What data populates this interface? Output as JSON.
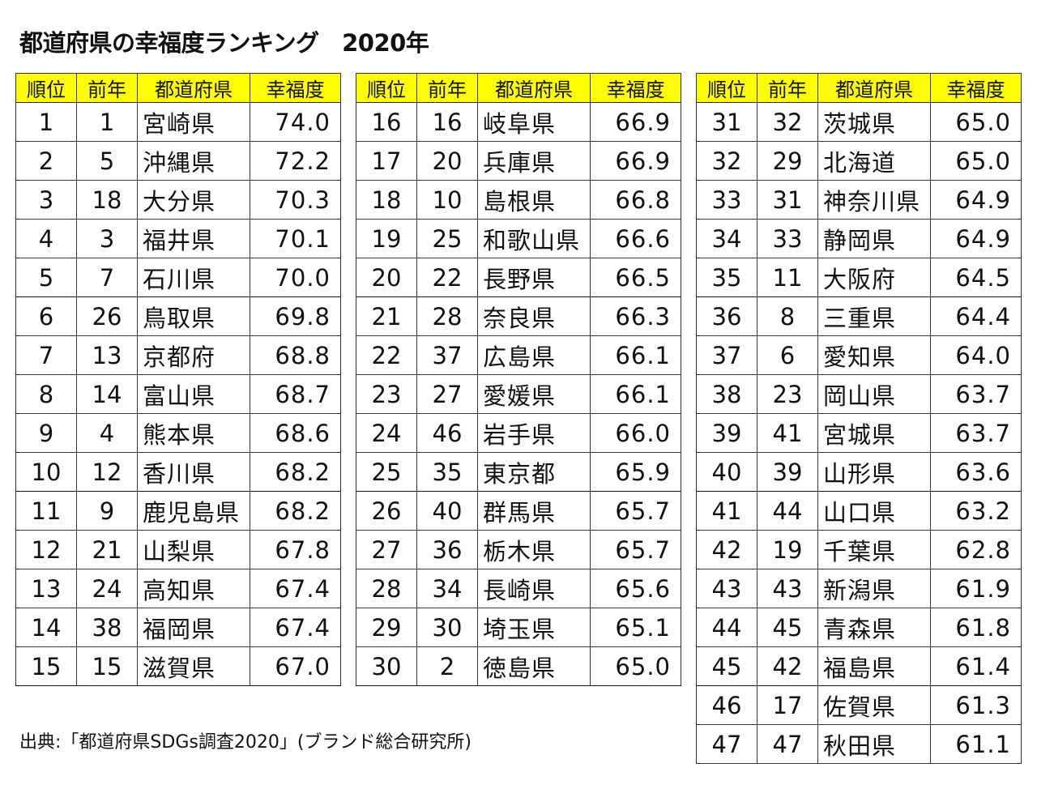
{
  "title": "都道府県の幸福度ランキング　2020年",
  "headers": {
    "rank": "順位",
    "prev": "前年",
    "pref": "都道府県",
    "score": "幸福度"
  },
  "tables": [
    {
      "rows": [
        {
          "rank": "1",
          "prev": "1",
          "pref": "宮崎県",
          "score": "74.0"
        },
        {
          "rank": "2",
          "prev": "5",
          "pref": "沖縄県",
          "score": "72.2"
        },
        {
          "rank": "3",
          "prev": "18",
          "pref": "大分県",
          "score": "70.3"
        },
        {
          "rank": "4",
          "prev": "3",
          "pref": "福井県",
          "score": "70.1"
        },
        {
          "rank": "5",
          "prev": "7",
          "pref": "石川県",
          "score": "70.0"
        },
        {
          "rank": "6",
          "prev": "26",
          "pref": "鳥取県",
          "score": "69.8"
        },
        {
          "rank": "7",
          "prev": "13",
          "pref": "京都府",
          "score": "68.8"
        },
        {
          "rank": "8",
          "prev": "14",
          "pref": "富山県",
          "score": "68.7"
        },
        {
          "rank": "9",
          "prev": "4",
          "pref": "熊本県",
          "score": "68.6"
        },
        {
          "rank": "10",
          "prev": "12",
          "pref": "香川県",
          "score": "68.2"
        },
        {
          "rank": "11",
          "prev": "9",
          "pref": "鹿児島県",
          "score": "68.2"
        },
        {
          "rank": "12",
          "prev": "21",
          "pref": "山梨県",
          "score": "67.8"
        },
        {
          "rank": "13",
          "prev": "24",
          "pref": "高知県",
          "score": "67.4"
        },
        {
          "rank": "14",
          "prev": "38",
          "pref": "福岡県",
          "score": "67.4"
        },
        {
          "rank": "15",
          "prev": "15",
          "pref": "滋賀県",
          "score": "67.0"
        }
      ]
    },
    {
      "rows": [
        {
          "rank": "16",
          "prev": "16",
          "pref": "岐阜県",
          "score": "66.9"
        },
        {
          "rank": "17",
          "prev": "20",
          "pref": "兵庫県",
          "score": "66.9"
        },
        {
          "rank": "18",
          "prev": "10",
          "pref": "島根県",
          "score": "66.8"
        },
        {
          "rank": "19",
          "prev": "25",
          "pref": "和歌山県",
          "score": "66.6"
        },
        {
          "rank": "20",
          "prev": "22",
          "pref": "長野県",
          "score": "66.5"
        },
        {
          "rank": "21",
          "prev": "28",
          "pref": "奈良県",
          "score": "66.3"
        },
        {
          "rank": "22",
          "prev": "37",
          "pref": "広島県",
          "score": "66.1"
        },
        {
          "rank": "23",
          "prev": "27",
          "pref": "愛媛県",
          "score": "66.1"
        },
        {
          "rank": "24",
          "prev": "46",
          "pref": "岩手県",
          "score": "66.0"
        },
        {
          "rank": "25",
          "prev": "35",
          "pref": "東京都",
          "score": "65.9"
        },
        {
          "rank": "26",
          "prev": "40",
          "pref": "群馬県",
          "score": "65.7"
        },
        {
          "rank": "27",
          "prev": "36",
          "pref": "栃木県",
          "score": "65.7"
        },
        {
          "rank": "28",
          "prev": "34",
          "pref": "長崎県",
          "score": "65.6"
        },
        {
          "rank": "29",
          "prev": "30",
          "pref": "埼玉県",
          "score": "65.1"
        },
        {
          "rank": "30",
          "prev": "2",
          "pref": "徳島県",
          "score": "65.0"
        }
      ]
    },
    {
      "rows": [
        {
          "rank": "31",
          "prev": "32",
          "pref": "茨城県",
          "score": "65.0"
        },
        {
          "rank": "32",
          "prev": "29",
          "pref": "北海道",
          "score": "65.0"
        },
        {
          "rank": "33",
          "prev": "31",
          "pref": "神奈川県",
          "score": "64.9"
        },
        {
          "rank": "34",
          "prev": "33",
          "pref": "静岡県",
          "score": "64.9"
        },
        {
          "rank": "35",
          "prev": "11",
          "pref": "大阪府",
          "score": "64.5"
        },
        {
          "rank": "36",
          "prev": "8",
          "pref": "三重県",
          "score": "64.4"
        },
        {
          "rank": "37",
          "prev": "6",
          "pref": "愛知県",
          "score": "64.0"
        },
        {
          "rank": "38",
          "prev": "23",
          "pref": "岡山県",
          "score": "63.7"
        },
        {
          "rank": "39",
          "prev": "41",
          "pref": "宮城県",
          "score": "63.7"
        },
        {
          "rank": "40",
          "prev": "39",
          "pref": "山形県",
          "score": "63.6"
        },
        {
          "rank": "41",
          "prev": "44",
          "pref": "山口県",
          "score": "63.2"
        },
        {
          "rank": "42",
          "prev": "19",
          "pref": "千葉県",
          "score": "62.8"
        },
        {
          "rank": "43",
          "prev": "43",
          "pref": "新潟県",
          "score": "61.9"
        },
        {
          "rank": "44",
          "prev": "45",
          "pref": "青森県",
          "score": "61.8"
        },
        {
          "rank": "45",
          "prev": "42",
          "pref": "福島県",
          "score": "61.4"
        },
        {
          "rank": "46",
          "prev": "17",
          "pref": "佐賀県",
          "score": "61.3"
        },
        {
          "rank": "47",
          "prev": "47",
          "pref": "秋田県",
          "score": "61.1"
        }
      ]
    }
  ],
  "source": "出典:「都道府県SDGs調査2020」(ブランド総合研究所)",
  "colors": {
    "header_bg": "#ffff00",
    "border": "#333333",
    "text": "#111111"
  }
}
